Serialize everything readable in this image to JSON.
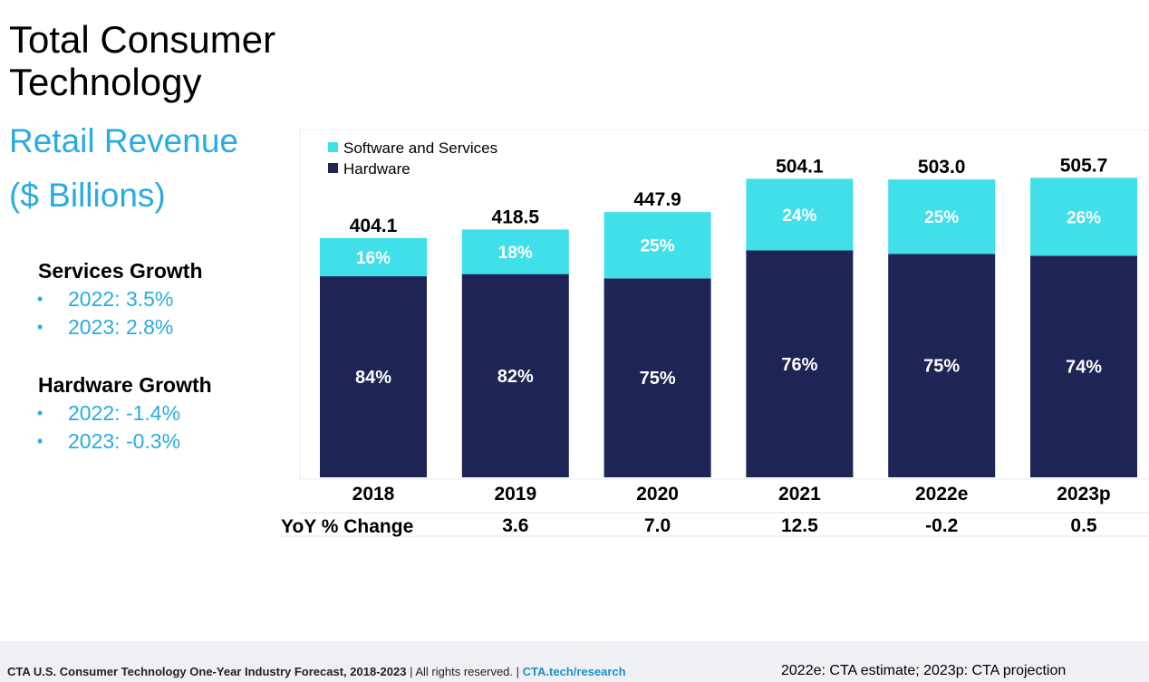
{
  "header": {
    "title": "Total Consumer Technology",
    "subtitle_line1": "Retail Revenue",
    "subtitle_line2": "($ Billions)"
  },
  "growth": {
    "services": {
      "heading": "Services Growth",
      "items": [
        "2022: 3.5%",
        "2023: 2.8%"
      ]
    },
    "hardware": {
      "heading": "Hardware Growth",
      "items": [
        "2022: -1.4%",
        "2023: -0.3%"
      ]
    }
  },
  "chart_data": {
    "type": "bar",
    "stacked": true,
    "categories": [
      "2018",
      "2019",
      "2020",
      "2021",
      "2022e",
      "2023p"
    ],
    "totals": [
      404.1,
      418.5,
      447.9,
      504.1,
      503.0,
      505.7
    ],
    "total_labels": [
      "404.1",
      "418.5",
      "447.9",
      "504.1",
      "503.0",
      "505.7"
    ],
    "series": [
      {
        "name": "Hardware",
        "color": "#1e2454",
        "share_pct": [
          84,
          82,
          75,
          76,
          75,
          74
        ],
        "labels": [
          "84%",
          "82%",
          "75%",
          "76%",
          "75%",
          "74%"
        ]
      },
      {
        "name": "Software and Services",
        "color": "#40dfe9",
        "share_pct": [
          16,
          18,
          25,
          24,
          25,
          26
        ],
        "labels": [
          "16%",
          "18%",
          "25%",
          "24%",
          "25%",
          "26%"
        ]
      }
    ],
    "legend_items": [
      "Software and Services",
      "Hardware"
    ],
    "legend_position": "top-left",
    "yoy_label": "YoY % Change",
    "yoy_values": [
      "3.6",
      "7.0",
      "12.5",
      "-0.2",
      "0.5"
    ],
    "ylim": [
      0,
      520
    ]
  },
  "footer": {
    "source_bold": "CTA U.S. Consumer Technology One-Year Industry Forecast, 2018-2023",
    "rights": "All rights reserved.",
    "link": "CTA.tech/research",
    "note": "2022e: CTA estimate; 2023p: CTA projection"
  }
}
